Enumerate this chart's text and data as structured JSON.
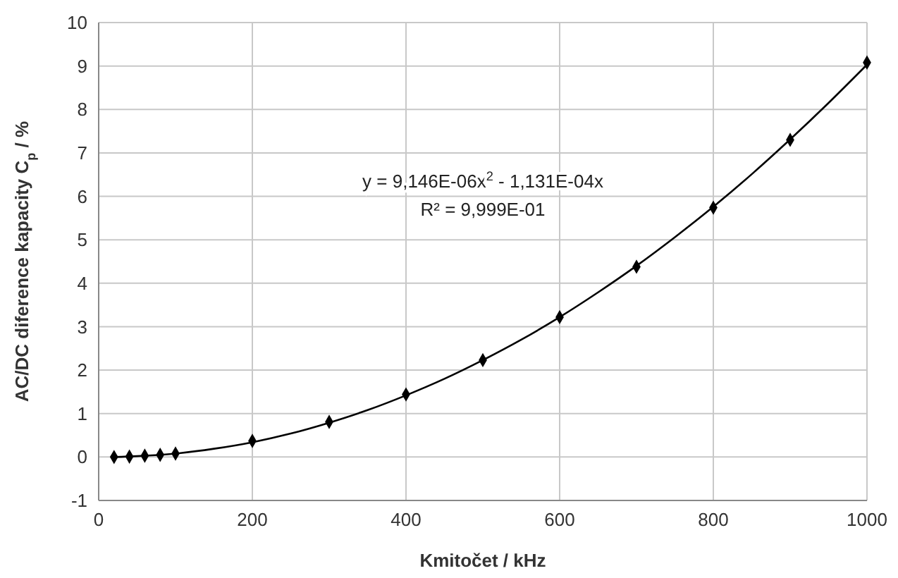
{
  "chart_data": {
    "type": "scatter",
    "xlabel": "Kmitočet / kHz",
    "ylabel": "AC/DC diference kapacity C$_{p}$ / %",
    "xlim": [
      0,
      1000
    ],
    "ylim": [
      -1,
      10
    ],
    "xticks": [
      0,
      200,
      400,
      600,
      800,
      1000
    ],
    "yticks": [
      -1,
      0,
      1,
      2,
      3,
      4,
      5,
      6,
      7,
      8,
      9,
      10
    ],
    "grid": true,
    "marker": "diamond",
    "annotations": [
      "y = 9,146E-06x$^{2}$ - 1,131E-04x",
      "R² = 9,999E-01"
    ],
    "series": [
      {
        "color": "#000000",
        "x": [
          20,
          40,
          60,
          80,
          100,
          200,
          300,
          400,
          500,
          600,
          700,
          800,
          900,
          1000
        ],
        "values": [
          0.0,
          0.01,
          0.03,
          0.05,
          0.08,
          0.37,
          0.81,
          1.44,
          2.23,
          3.22,
          4.38,
          5.74,
          7.3,
          9.08
        ]
      },
      {
        "type": "line",
        "color": "#000000",
        "marker": "none",
        "line_style": "solid",
        "x": [
          20,
          50,
          100,
          150,
          200,
          250,
          300,
          350,
          400,
          450,
          500,
          550,
          600,
          650,
          700,
          750,
          800,
          850,
          900,
          950,
          1000
        ],
        "values": [
          0.0,
          0.02,
          0.08,
          0.19,
          0.34,
          0.54,
          0.79,
          1.08,
          1.42,
          1.8,
          2.23,
          2.7,
          3.22,
          3.79,
          4.4,
          5.06,
          5.76,
          6.51,
          7.31,
          8.15,
          9.03
        ]
      }
    ]
  }
}
